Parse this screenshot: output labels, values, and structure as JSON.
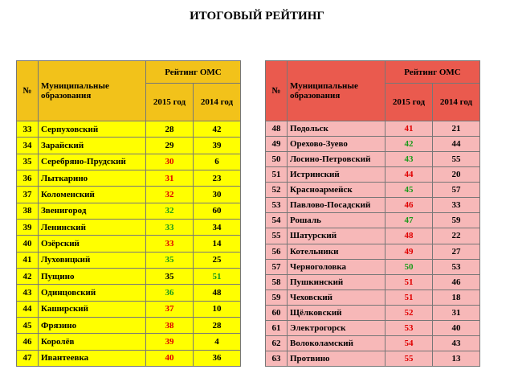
{
  "title": "ИТОГОВЫЙ РЕЙТИНГ",
  "tables": [
    {
      "headers": {
        "num": "№",
        "name": "Муниципальные образования",
        "rating": "Рейтинг ОМС",
        "y2015": "2015 год",
        "y2014": "2014 год"
      },
      "rows": [
        {
          "num": 33,
          "name": "Серпуховский",
          "y2015": 28,
          "y2014": 42,
          "colors": [
            "#000000",
            "#000000"
          ]
        },
        {
          "num": 34,
          "name": "Зарайский",
          "y2015": 29,
          "y2014": 39,
          "colors": [
            "#000000",
            "#000000"
          ]
        },
        {
          "num": 35,
          "name": "Серебряно-Прудский",
          "y2015": 30,
          "y2014": 6,
          "colors": [
            "#e00000",
            "#000000"
          ]
        },
        {
          "num": 36,
          "name": "Лыткарино",
          "y2015": 31,
          "y2014": 23,
          "colors": [
            "#e00000",
            "#000000"
          ]
        },
        {
          "num": 37,
          "name": "Коломенский",
          "y2015": 32,
          "y2014": 30,
          "colors": [
            "#e00000",
            "#000000"
          ]
        },
        {
          "num": 38,
          "name": "Звенигород",
          "y2015": 32,
          "y2014": 60,
          "colors": [
            "#1a9a1a",
            "#000000"
          ]
        },
        {
          "num": 39,
          "name": "Ленинский",
          "y2015": 33,
          "y2014": 34,
          "colors": [
            "#1a9a1a",
            "#000000"
          ]
        },
        {
          "num": 40,
          "name": "Озёрский",
          "y2015": 33,
          "y2014": 14,
          "colors": [
            "#e00000",
            "#000000"
          ]
        },
        {
          "num": 41,
          "name": "Луховицкий",
          "y2015": 35,
          "y2014": 25,
          "colors": [
            "#1a9a1a",
            "#000000"
          ]
        },
        {
          "num": 42,
          "name": "Пущино",
          "y2015": 35,
          "y2014": 51,
          "colors": [
            "#000000",
            "#1a9a1a"
          ]
        },
        {
          "num": 43,
          "name": "Одинцовский",
          "y2015": 36,
          "y2014": 48,
          "colors": [
            "#1a9a1a",
            "#000000"
          ]
        },
        {
          "num": 44,
          "name": "Каширский",
          "y2015": 37,
          "y2014": 10,
          "colors": [
            "#e00000",
            "#000000"
          ]
        },
        {
          "num": 45,
          "name": "Фрязино",
          "y2015": 38,
          "y2014": 28,
          "colors": [
            "#e00000",
            "#000000"
          ]
        },
        {
          "num": 46,
          "name": "Королёв",
          "y2015": 39,
          "y2014": 4,
          "colors": [
            "#e00000",
            "#000000"
          ]
        },
        {
          "num": 47,
          "name": "Ивантеевка",
          "y2015": 40,
          "y2014": 36,
          "colors": [
            "#e00000",
            "#000000"
          ]
        }
      ]
    },
    {
      "headers": {
        "num": "№",
        "name": "Муниципальные образования",
        "rating": "Рейтинг ОМС",
        "y2015": "2015 год",
        "y2014": "2014 год"
      },
      "rows": [
        {
          "num": 48,
          "name": "Подольск",
          "y2015": 41,
          "y2014": 21,
          "colors": [
            "#e00000",
            "#000000"
          ]
        },
        {
          "num": 49,
          "name": "Орехово-Зуево",
          "y2015": 42,
          "y2014": 44,
          "colors": [
            "#1a9a1a",
            "#000000"
          ]
        },
        {
          "num": 50,
          "name": "Лосино-Петровский",
          "y2015": 43,
          "y2014": 55,
          "colors": [
            "#1a9a1a",
            "#000000"
          ]
        },
        {
          "num": 51,
          "name": "Истринский",
          "y2015": 44,
          "y2014": 20,
          "colors": [
            "#e00000",
            "#000000"
          ]
        },
        {
          "num": 52,
          "name": "Красноармейск",
          "y2015": 45,
          "y2014": 57,
          "colors": [
            "#1a9a1a",
            "#000000"
          ]
        },
        {
          "num": 53,
          "name": "Павлово-Посадский",
          "y2015": 46,
          "y2014": 33,
          "colors": [
            "#e00000",
            "#000000"
          ]
        },
        {
          "num": 54,
          "name": "Рошаль",
          "y2015": 47,
          "y2014": 59,
          "colors": [
            "#1a9a1a",
            "#000000"
          ]
        },
        {
          "num": 55,
          "name": "Шатурский",
          "y2015": 48,
          "y2014": 22,
          "colors": [
            "#e00000",
            "#000000"
          ]
        },
        {
          "num": 56,
          "name": "Котельники",
          "y2015": 49,
          "y2014": 27,
          "colors": [
            "#e00000",
            "#000000"
          ]
        },
        {
          "num": 57,
          "name": "Черноголовка",
          "y2015": 50,
          "y2014": 53,
          "colors": [
            "#1a9a1a",
            "#000000"
          ]
        },
        {
          "num": 58,
          "name": "Пушкинский",
          "y2015": 51,
          "y2014": 46,
          "colors": [
            "#e00000",
            "#000000"
          ]
        },
        {
          "num": 59,
          "name": "Чеховский",
          "y2015": 51,
          "y2014": 18,
          "colors": [
            "#e00000",
            "#000000"
          ]
        },
        {
          "num": 60,
          "name": "Щёлковский",
          "y2015": 52,
          "y2014": 31,
          "colors": [
            "#e00000",
            "#000000"
          ]
        },
        {
          "num": 61,
          "name": "Электрогорск",
          "y2015": 53,
          "y2014": 40,
          "colors": [
            "#e00000",
            "#000000"
          ]
        },
        {
          "num": 62,
          "name": "Волоколамский",
          "y2015": 54,
          "y2014": 43,
          "colors": [
            "#e00000",
            "#000000"
          ]
        },
        {
          "num": 63,
          "name": "Протвино",
          "y2015": 55,
          "y2014": 13,
          "colors": [
            "#e00000",
            "#000000"
          ]
        }
      ]
    }
  ]
}
